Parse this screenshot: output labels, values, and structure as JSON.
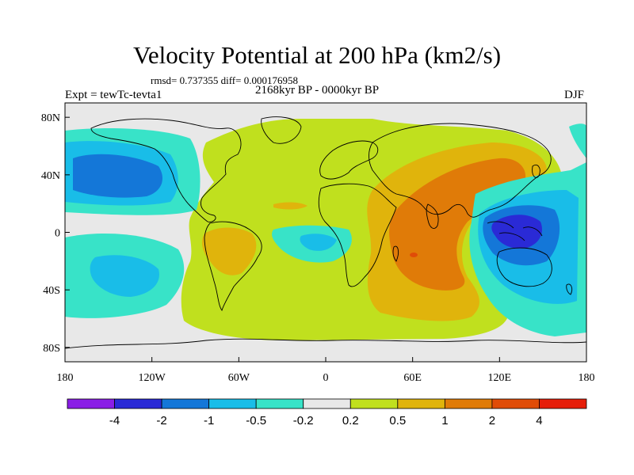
{
  "title": "Velocity Potential at 200 hPa (km2/s)",
  "stats": "rmsd= 0.737355  diff= 0.000176958",
  "period": "2168kyr BP - 0000kyr BP",
  "expt": "Expt = tewTc-tevta1",
  "season": "DJF",
  "map": {
    "lon_range": [
      -180,
      180
    ],
    "lat_range": [
      -90,
      90
    ],
    "x_ticks": [
      {
        "lon": -180,
        "label": "180"
      },
      {
        "lon": -120,
        "label": "120W"
      },
      {
        "lon": -60,
        "label": "60W"
      },
      {
        "lon": 0,
        "label": "0"
      },
      {
        "lon": 60,
        "label": "60E"
      },
      {
        "lon": 120,
        "label": "120E"
      },
      {
        "lon": 180,
        "label": "180"
      }
    ],
    "y_ticks": [
      {
        "lat": 80,
        "label": "80N"
      },
      {
        "lat": 40,
        "label": "40N"
      },
      {
        "lat": 0,
        "label": "0"
      },
      {
        "lat": -40,
        "label": "40S"
      },
      {
        "lat": -80,
        "label": "80S"
      }
    ]
  },
  "colorbar": {
    "colors": [
      "#8a1ee6",
      "#2a2ad6",
      "#1477d8",
      "#19bde8",
      "#38e3c8",
      "#e8e8e8",
      "#c0e01e",
      "#e0b40c",
      "#e07b08",
      "#e04c08",
      "#e61e0a"
    ],
    "labels": [
      "-4",
      "-2",
      "-1",
      "-0.5",
      "-0.2",
      "0.2",
      "0.5",
      "1",
      "2",
      "4"
    ]
  }
}
